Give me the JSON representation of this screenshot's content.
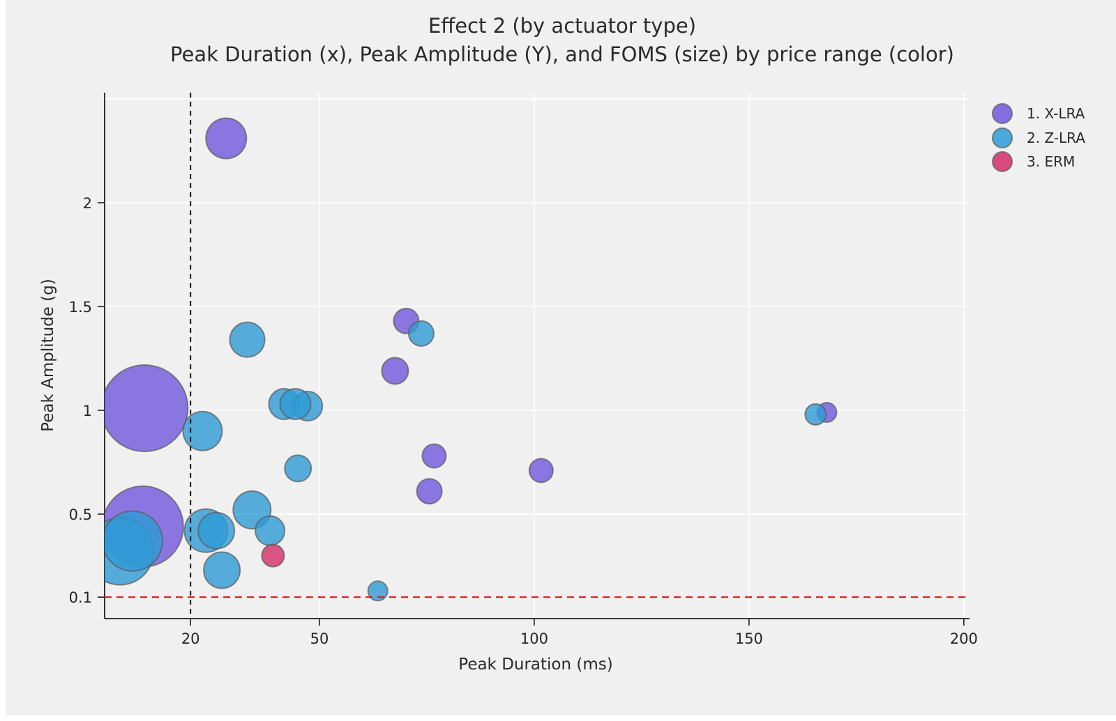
{
  "title": "Effect 2 (by actuator type)",
  "subtitle": "Peak Duration (x), Peak Amplitude (Y), and FOMS (size) by price range (color)",
  "colors": {
    "figure_bg": "#F0F0F0",
    "page_bg": "#FFFFFF",
    "grid": "#FFFFFF",
    "axis_line": "#1c1c1c",
    "tick_text": "#262626",
    "marker_stroke": "#5f5f5f",
    "vline_color": "#111111",
    "hline_color": "#E01818",
    "x_lra": "#7056DD",
    "z_lra": "#2E9BD6",
    "erm": "#D32D68"
  },
  "legend": {
    "items": [
      {
        "label": "1. X-LRA",
        "color_key": "x_lra"
      },
      {
        "label": "2. Z-LRA",
        "color_key": "z_lra"
      },
      {
        "label": "3. ERM",
        "color_key": "erm"
      }
    ]
  },
  "chart_data": {
    "type": "scatter",
    "title": "Effect 2 (by actuator type)",
    "subtitle": "Peak Duration (x), Peak Amplitude (Y), and FOMS (size) by price range (color)",
    "xlabel": "Peak Duration (ms)",
    "ylabel": "Peak Amplitude (g)",
    "xlim": [
      0,
      201
    ],
    "ylim": [
      0,
      2.53
    ],
    "x_ticks": [
      20,
      50,
      100,
      150,
      200
    ],
    "y_ticks": [
      "0.1",
      "0.5",
      "1",
      "1.5",
      "2"
    ],
    "x_gridlines": [
      50,
      100,
      150,
      200
    ],
    "y_gridlines": [
      0.5,
      1,
      1.5,
      2,
      2.5
    ],
    "grid_on": true,
    "legend_position": "top-right",
    "ref_lines": {
      "vertical_x": 20,
      "horizontal_y": 0.1
    },
    "size_legend_note": "bubble radius encodes FOMS",
    "series": [
      {
        "name": "1. X-LRA",
        "color_key": "x_lra",
        "points": [
          {
            "x": 28.3,
            "y": 2.31,
            "r": 29
          },
          {
            "x": 70.2,
            "y": 1.43,
            "r": 18
          },
          {
            "x": 67.6,
            "y": 1.19,
            "r": 19
          },
          {
            "x": 9.3,
            "y": 1.01,
            "r": 62
          },
          {
            "x": 76.7,
            "y": 0.78,
            "r": 17
          },
          {
            "x": 101.6,
            "y": 0.71,
            "r": 17
          },
          {
            "x": 75.6,
            "y": 0.61,
            "r": 18
          },
          {
            "x": 8.9,
            "y": 0.44,
            "r": 58
          },
          {
            "x": 168.1,
            "y": 0.99,
            "r": 14
          }
        ]
      },
      {
        "name": "2. Z-LRA",
        "color_key": "z_lra",
        "points": [
          {
            "x": 33.2,
            "y": 1.34,
            "r": 25
          },
          {
            "x": 41.8,
            "y": 1.03,
            "r": 22
          },
          {
            "x": 47.3,
            "y": 1.02,
            "r": 21
          },
          {
            "x": 44.4,
            "y": 1.03,
            "r": 22
          },
          {
            "x": 73.7,
            "y": 1.37,
            "r": 18
          },
          {
            "x": 22.8,
            "y": 0.9,
            "r": 28
          },
          {
            "x": 45.0,
            "y": 0.72,
            "r": 19
          },
          {
            "x": 34.3,
            "y": 0.52,
            "r": 27
          },
          {
            "x": 3.6,
            "y": 0.32,
            "r": 48
          },
          {
            "x": 6.5,
            "y": 0.37,
            "r": 43
          },
          {
            "x": 23.6,
            "y": 0.42,
            "r": 31
          },
          {
            "x": 26.0,
            "y": 0.42,
            "r": 26
          },
          {
            "x": 38.5,
            "y": 0.42,
            "r": 21
          },
          {
            "x": 27.3,
            "y": 0.23,
            "r": 26
          },
          {
            "x": 63.6,
            "y": 0.13,
            "r": 14
          },
          {
            "x": 165.5,
            "y": 0.98,
            "r": 15
          }
        ]
      },
      {
        "name": "3. ERM",
        "color_key": "erm",
        "points": [
          {
            "x": 39.2,
            "y": 0.3,
            "r": 16
          }
        ]
      }
    ]
  }
}
